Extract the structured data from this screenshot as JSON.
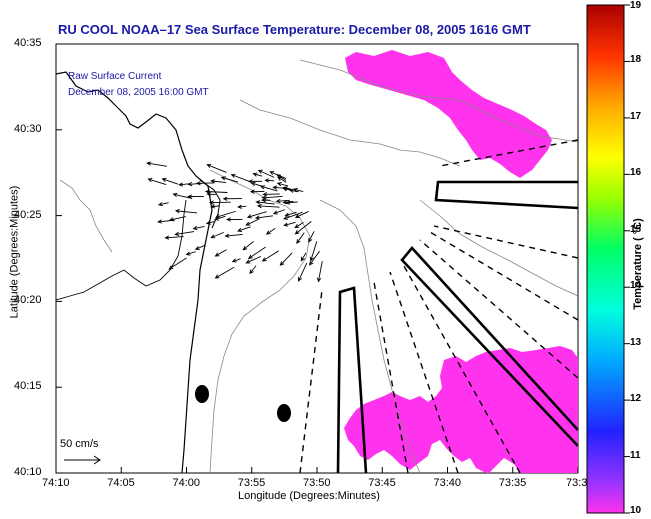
{
  "title": "RU COOL   NOAA–17  Sea Surface Temperature:  December 08, 2005 1616 GMT",
  "legend": {
    "line1": "Raw Surface Current",
    "line2": "December 08, 2005 16:00 GMT"
  },
  "axes": {
    "xlabel": "Longitude (Degrees:Minutes)",
    "ylabel": "Latitude (Degrees:Minutes)",
    "xticks": [
      "74:10",
      "74:05",
      "74:00",
      "73:55",
      "73:50",
      "73:45",
      "73:40",
      "73:35",
      "73:3"
    ],
    "yticks": [
      "40:35",
      "40:30",
      "40:25",
      "40:20",
      "40:15",
      "40:10"
    ]
  },
  "colorbar": {
    "label": "Temperature ( °C)",
    "ticks": [
      "19",
      "18",
      "17",
      "16",
      "15",
      "14",
      "13",
      "12",
      "11",
      "10"
    ],
    "min": 10,
    "max": 19
  },
  "scale": {
    "label": "50 cm/s"
  },
  "colors": {
    "sst_patch": "#ff33ee",
    "title": "#1a1aa6",
    "land_background": "#ffffff"
  }
}
